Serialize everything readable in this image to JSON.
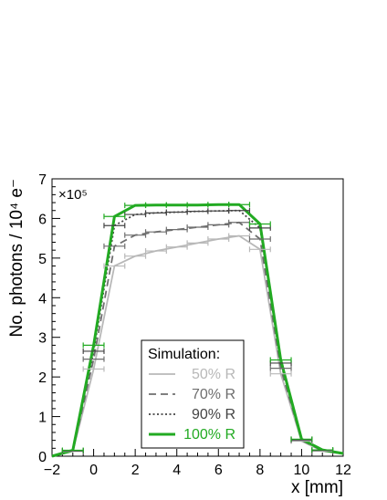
{
  "chart_data": {
    "type": "line",
    "xlabel": "x [mm]",
    "ylabel": "No. photons / 10⁴ e⁻",
    "multiplier": "×10⁵",
    "xlim": [
      -2,
      12
    ],
    "ylim": [
      0,
      7
    ],
    "x_ticks": [
      -2,
      0,
      2,
      4,
      6,
      8,
      10,
      12
    ],
    "y_ticks": [
      0,
      1,
      2,
      3,
      4,
      5,
      6,
      7
    ],
    "x_error": 0.5,
    "legend": {
      "title": "Simulation:",
      "placement": "lower-center"
    },
    "x": [
      -2,
      -1,
      0,
      1,
      2,
      3,
      4,
      5,
      6,
      7,
      8,
      9,
      10,
      11,
      12
    ],
    "series": [
      {
        "name": "50% R",
        "color": "#b8b8b8",
        "dash": "solid",
        "values": [
          0,
          0.12,
          2.2,
          4.8,
          5.05,
          5.18,
          5.28,
          5.38,
          5.48,
          5.56,
          5.22,
          2.08,
          0.38,
          0.13,
          0.06
        ]
      },
      {
        "name": "70% R",
        "color": "#6e6e6e",
        "dash": "dashed",
        "values": [
          0,
          0.13,
          2.45,
          5.3,
          5.58,
          5.66,
          5.72,
          5.78,
          5.84,
          5.9,
          5.48,
          2.22,
          0.4,
          0.14,
          0.06
        ]
      },
      {
        "name": "90% R",
        "color": "#444444",
        "dash": "dotted",
        "values": [
          0,
          0.14,
          2.65,
          5.82,
          6.1,
          6.14,
          6.16,
          6.18,
          6.19,
          6.2,
          5.76,
          2.35,
          0.42,
          0.15,
          0.07
        ]
      },
      {
        "name": "100% R",
        "color": "#22aa22",
        "dash": "solid",
        "values": [
          0,
          0.15,
          2.8,
          6.05,
          6.33,
          6.34,
          6.34,
          6.34,
          6.35,
          6.35,
          5.86,
          2.43,
          0.43,
          0.16,
          0.07
        ]
      }
    ]
  }
}
